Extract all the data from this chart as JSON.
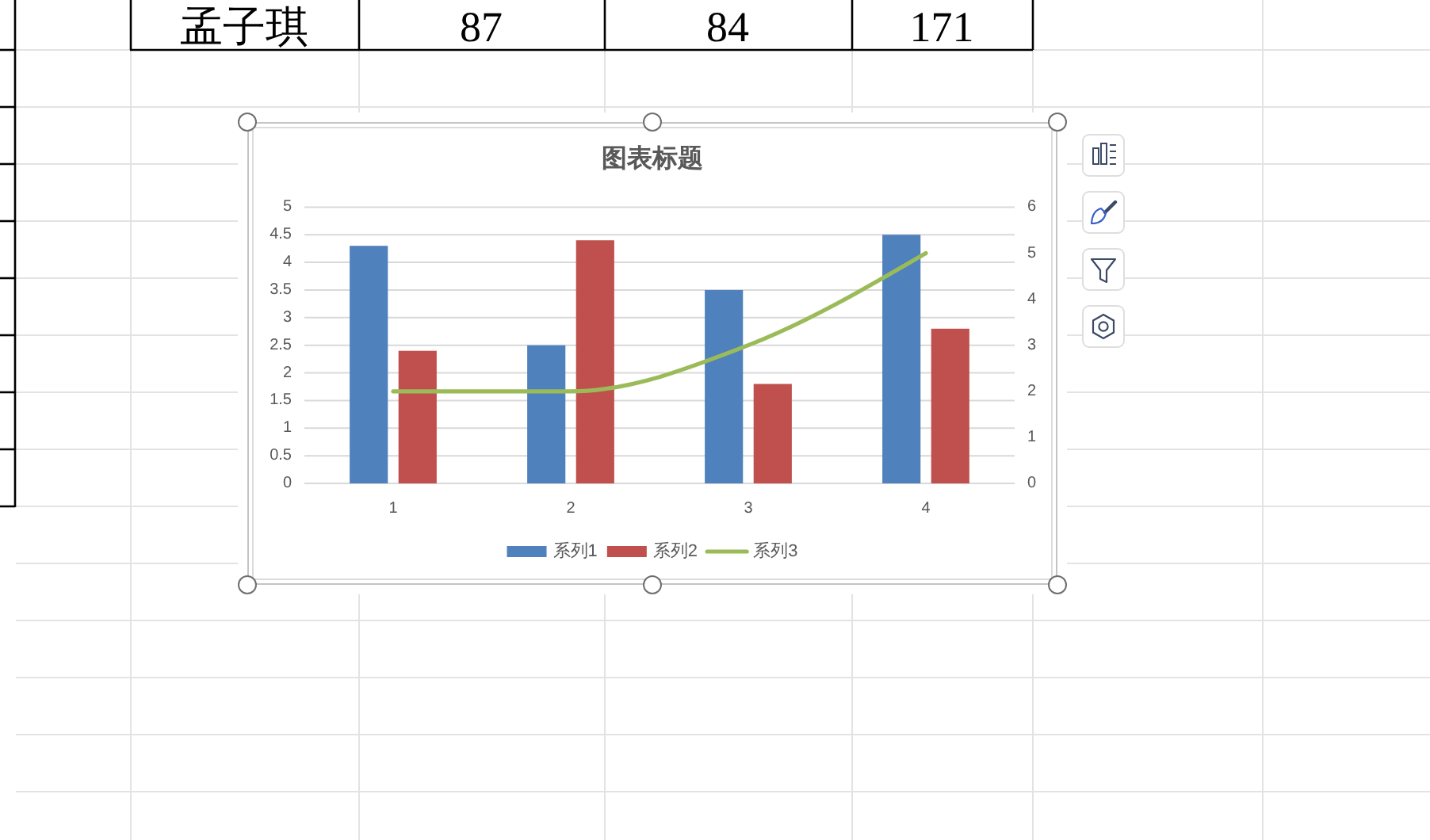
{
  "chart_data": {
    "type": "bar",
    "title": "图表标题",
    "categories": [
      "1",
      "2",
      "3",
      "4"
    ],
    "series": [
      {
        "name": "系列1",
        "color": "#4f81bd",
        "values": [
          4.3,
          2.5,
          3.5,
          4.5
        ]
      },
      {
        "name": "系列2",
        "color": "#c0504d",
        "values": [
          2.4,
          4.4,
          1.8,
          2.8
        ]
      },
      {
        "name": "系列3",
        "type": "line",
        "axis": "y2",
        "color": "#9bbb59",
        "values": [
          2,
          2,
          3,
          5
        ]
      }
    ],
    "ylim": [
      0,
      5
    ],
    "yticks": [
      0,
      0.5,
      1,
      1.5,
      2,
      2.5,
      3,
      3.5,
      4,
      4.5,
      5
    ],
    "y2lim": [
      0,
      6
    ],
    "y2ticks": [
      0,
      1,
      2,
      3,
      4,
      5,
      6
    ],
    "grid": "y",
    "legend": "bottom",
    "annotations": [
      "孟子琪",
      "87",
      "84",
      "171"
    ]
  }
}
